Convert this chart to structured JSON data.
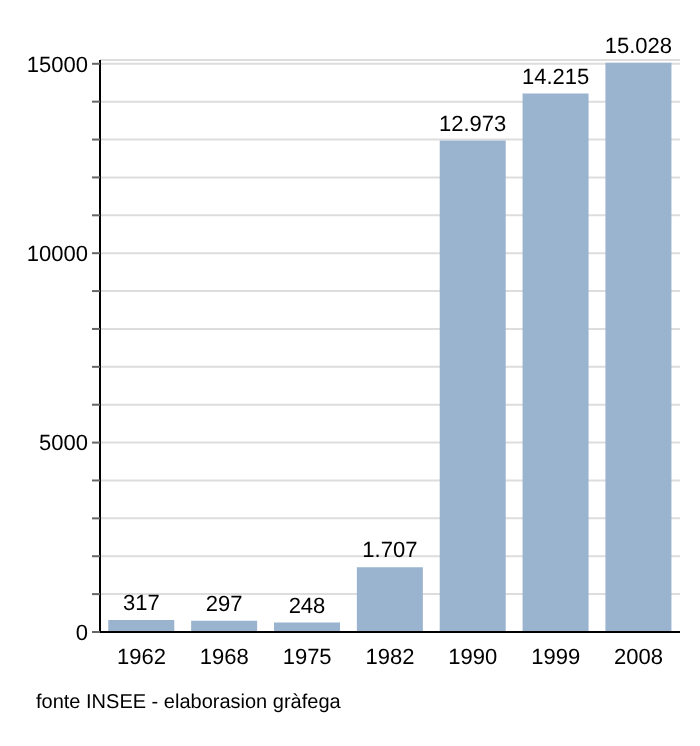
{
  "chart_data": {
    "type": "bar",
    "categories": [
      "1962",
      "1968",
      "1975",
      "1982",
      "1990",
      "1999",
      "2008"
    ],
    "values": [
      317,
      297,
      248,
      1707,
      12973,
      14215,
      15028
    ],
    "value_labels": [
      "317",
      "297",
      "248",
      "1.707",
      "12.973",
      "14.215",
      "15.028"
    ],
    "color": "#9ab3cf",
    "ylim": [
      0,
      15100
    ],
    "yticks": [
      0,
      {
        "value": 1000,
        "label": null
      },
      {
        "value": 2000,
        "label": null
      },
      {
        "value": 3000,
        "label": null
      },
      {
        "value": 4000,
        "label": null
      },
      5000,
      {
        "value": 6000,
        "label": null
      },
      {
        "value": 7000,
        "label": null
      },
      {
        "value": 8000,
        "label": null
      },
      {
        "value": 9000,
        "label": null
      },
      10000,
      {
        "value": 11000,
        "label": null
      },
      {
        "value": 12000,
        "label": null
      },
      {
        "value": 13000,
        "label": null
      },
      {
        "value": 14000,
        "label": null
      },
      15000
    ],
    "grid": "y",
    "annotations": [
      "fonte INSEE - elaborasion gràfega"
    ]
  }
}
